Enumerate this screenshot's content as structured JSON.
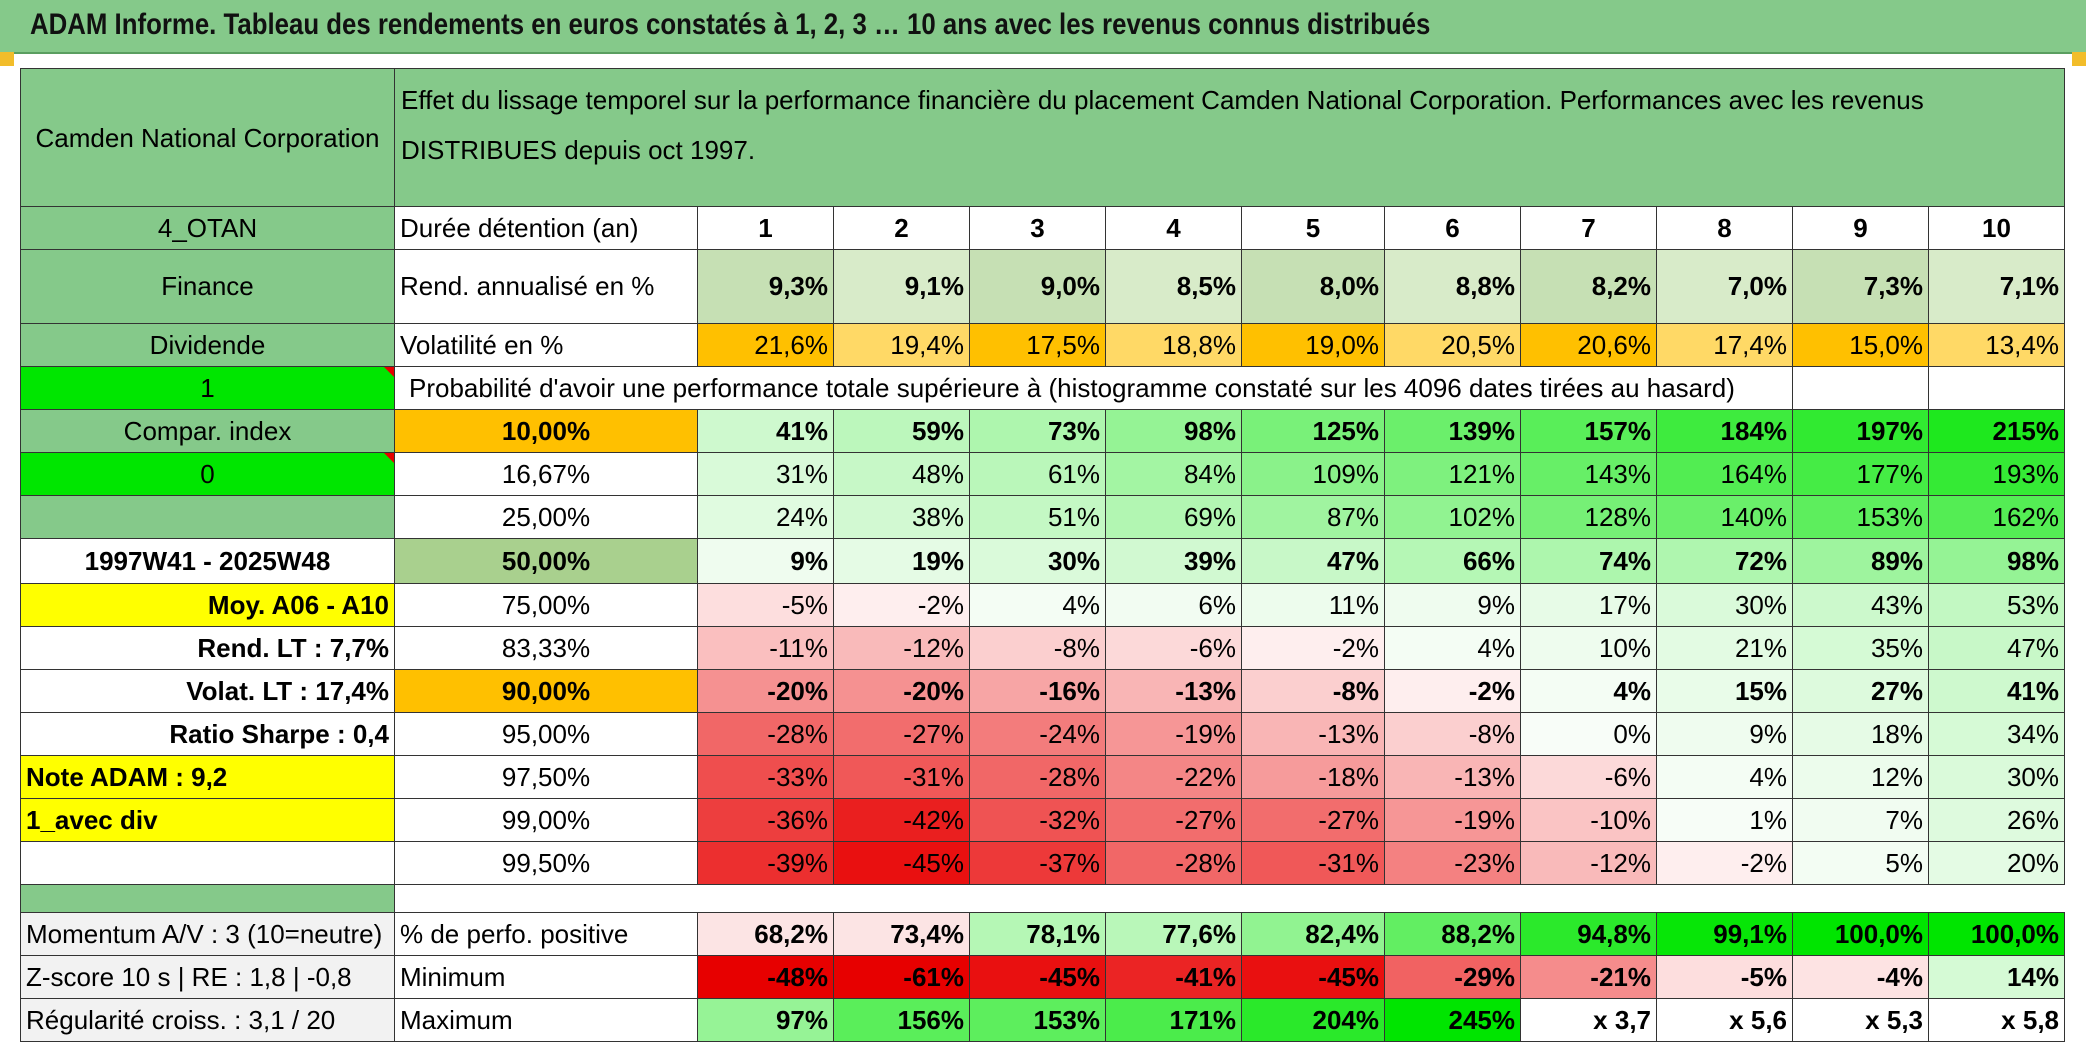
{
  "title": "ADAM Informe. Tableau des rendements en euros constatés à 1, 2, 3 … 10 ans avec les revenus connus distribués",
  "header": {
    "company": "Camden National Corporation",
    "description": "Effet du lissage temporel sur la performance financière du placement Camden National Corporation. Performances avec les revenus DISTRIBUES depuis oct 1997."
  },
  "side": {
    "code": "4_OTAN",
    "sector": "Finance",
    "dividend": "Dividende",
    "flag1": "1",
    "compar_index": "Compar. index",
    "flag0": "0",
    "period": "1997W41 - 2025W48",
    "moy": "Moy. A06 - A10",
    "rend_lt": "Rend. LT :   7,7%",
    "volat_lt": "Volat. LT :   17,4%",
    "sharpe": "Ratio Sharpe :    0,4",
    "note": "Note ADAM : 9,2",
    "avec_div": "1_avec div",
    "momentum": "Momentum A/V : 3 (10=neutre)",
    "zscore": "Z-score 10 s | RE : 1,8 | -0,8",
    "regularite": "Régularité croiss. : 3,1 / 20"
  },
  "labels": {
    "duree": "Durée détention (an)",
    "rend": "Rend. annualisé en %",
    "vol": "Volatilité en %",
    "proba": "Probabilité d'avoir une performance totale supérieure à (histogramme constaté sur les 4096 dates tirées au hasard)",
    "pos": "% de perfo. positive",
    "min": "Minimum",
    "max": "Maximum"
  },
  "years": [
    "1",
    "2",
    "3",
    "4",
    "5",
    "6",
    "7",
    "8",
    "9",
    "10"
  ],
  "rend": [
    "9,3%",
    "9,1%",
    "9,0%",
    "8,5%",
    "8,0%",
    "8,8%",
    "8,2%",
    "7,0%",
    "7,3%",
    "7,1%"
  ],
  "vol": [
    "21,6%",
    "19,4%",
    "17,5%",
    "18,8%",
    "19,0%",
    "20,5%",
    "20,6%",
    "17,4%",
    "15,0%",
    "13,4%"
  ],
  "quantiles": [
    {
      "label": "10,00%",
      "values": [
        "41%",
        "59%",
        "73%",
        "98%",
        "125%",
        "139%",
        "157%",
        "184%",
        "197%",
        "215%"
      ]
    },
    {
      "label": "16,67%",
      "values": [
        "31%",
        "48%",
        "61%",
        "84%",
        "109%",
        "121%",
        "143%",
        "164%",
        "177%",
        "193%"
      ]
    },
    {
      "label": "25,00%",
      "values": [
        "24%",
        "38%",
        "51%",
        "69%",
        "87%",
        "102%",
        "128%",
        "140%",
        "153%",
        "162%"
      ]
    },
    {
      "label": "50,00%",
      "values": [
        "9%",
        "19%",
        "30%",
        "39%",
        "47%",
        "66%",
        "74%",
        "72%",
        "89%",
        "98%"
      ]
    },
    {
      "label": "75,00%",
      "values": [
        "-5%",
        "-2%",
        "4%",
        "6%",
        "11%",
        "9%",
        "17%",
        "30%",
        "43%",
        "53%"
      ]
    },
    {
      "label": "83,33%",
      "values": [
        "-11%",
        "-12%",
        "-8%",
        "-6%",
        "-2%",
        "4%",
        "10%",
        "21%",
        "35%",
        "47%"
      ]
    },
    {
      "label": "90,00%",
      "values": [
        "-20%",
        "-20%",
        "-16%",
        "-13%",
        "-8%",
        "-2%",
        "4%",
        "15%",
        "27%",
        "41%"
      ]
    },
    {
      "label": "95,00%",
      "values": [
        "-28%",
        "-27%",
        "-24%",
        "-19%",
        "-13%",
        "-8%",
        "0%",
        "9%",
        "18%",
        "34%"
      ]
    },
    {
      "label": "97,50%",
      "values": [
        "-33%",
        "-31%",
        "-28%",
        "-22%",
        "-18%",
        "-13%",
        "-6%",
        "4%",
        "12%",
        "30%"
      ]
    },
    {
      "label": "99,00%",
      "values": [
        "-36%",
        "-42%",
        "-32%",
        "-27%",
        "-27%",
        "-19%",
        "-10%",
        "1%",
        "7%",
        "26%"
      ]
    },
    {
      "label": "99,50%",
      "values": [
        "-39%",
        "-45%",
        "-37%",
        "-28%",
        "-31%",
        "-23%",
        "-12%",
        "-2%",
        "5%",
        "20%"
      ]
    }
  ],
  "pos": [
    "68,2%",
    "73,4%",
    "78,1%",
    "77,6%",
    "82,4%",
    "88,2%",
    "94,8%",
    "99,1%",
    "100,0%",
    "100,0%"
  ],
  "min": [
    "-48%",
    "-61%",
    "-45%",
    "-41%",
    "-45%",
    "-29%",
    "-21%",
    "-5%",
    "-4%",
    "14%"
  ],
  "max": [
    "97%",
    "156%",
    "153%",
    "171%",
    "204%",
    "245%",
    "x 3,7",
    "x 5,6",
    "x 5,3",
    "x 5,8"
  ],
  "colors": {
    "header_green": "#85c98a",
    "orange": "#ffc000",
    "yellow": "#ffff00",
    "bright_green": "#00e600",
    "red_text": "#e0001b"
  }
}
